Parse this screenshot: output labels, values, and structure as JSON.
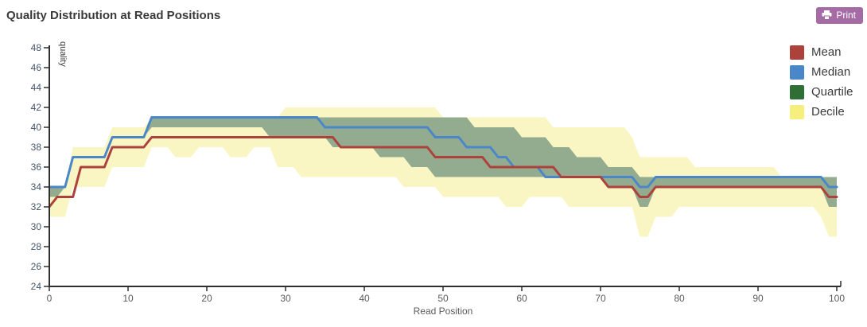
{
  "header": {
    "title": "Quality Distribution at Read Positions",
    "print_label": "Print"
  },
  "axes": {
    "x_label": "Read Position",
    "y_label": "quality",
    "x_ticks": [
      0,
      10,
      20,
      30,
      40,
      50,
      60,
      70,
      80,
      90,
      100
    ],
    "y_ticks": [
      24,
      26,
      28,
      30,
      32,
      34,
      36,
      38,
      40,
      42,
      44,
      46,
      48
    ],
    "x_range": [
      0,
      100
    ],
    "y_range": [
      24,
      48
    ],
    "grid": false
  },
  "legend": {
    "position": "top-right",
    "items": [
      {
        "label": "Mean",
        "color": "#ad423c"
      },
      {
        "label": "Median",
        "color": "#4a87c9"
      },
      {
        "label": "Quartile",
        "color": "#2f6e35"
      },
      {
        "label": "Decile",
        "color": "#f6ef7d"
      }
    ]
  },
  "chart_data": {
    "type": "line",
    "title": "Quality Distribution at Read Positions",
    "xlabel": "Read Position",
    "ylabel": "quality",
    "xlim": [
      0,
      100
    ],
    "ylim": [
      24,
      48
    ],
    "legend_position": "top-right",
    "x": [
      0,
      1,
      2,
      3,
      4,
      5,
      6,
      7,
      8,
      9,
      10,
      11,
      12,
      13,
      14,
      15,
      16,
      17,
      18,
      19,
      20,
      21,
      22,
      23,
      24,
      25,
      26,
      27,
      28,
      29,
      30,
      31,
      32,
      33,
      34,
      35,
      36,
      37,
      38,
      39,
      40,
      41,
      42,
      43,
      44,
      45,
      46,
      47,
      48,
      49,
      50,
      51,
      52,
      53,
      54,
      55,
      56,
      57,
      58,
      59,
      60,
      61,
      62,
      63,
      64,
      65,
      66,
      67,
      68,
      69,
      70,
      71,
      72,
      73,
      74,
      75,
      76,
      77,
      78,
      79,
      80,
      81,
      82,
      83,
      84,
      85,
      86,
      87,
      88,
      89,
      90,
      91,
      92,
      93,
      94,
      95,
      96,
      97,
      98,
      99,
      100
    ],
    "series": [
      {
        "name": "Median",
        "color": "#4a87c9",
        "values": [
          34,
          34,
          34,
          37,
          37,
          37,
          37,
          37,
          39,
          39,
          39,
          39,
          39,
          41,
          41,
          41,
          41,
          41,
          41,
          41,
          41,
          41,
          41,
          41,
          41,
          41,
          41,
          41,
          41,
          41,
          41,
          41,
          41,
          41,
          41,
          40,
          40,
          40,
          40,
          40,
          40,
          40,
          40,
          40,
          40,
          40,
          40,
          40,
          40,
          39,
          39,
          39,
          39,
          38,
          38,
          38,
          38,
          37,
          37,
          36,
          36,
          36,
          36,
          35,
          35,
          35,
          35,
          35,
          35,
          35,
          35,
          35,
          35,
          35,
          35,
          34,
          34,
          35,
          35,
          35,
          35,
          35,
          35,
          35,
          35,
          35,
          35,
          35,
          35,
          35,
          35,
          35,
          35,
          35,
          35,
          35,
          35,
          35,
          35,
          34,
          34
        ]
      },
      {
        "name": "Mean",
        "color": "#ad423c",
        "values": [
          32,
          33,
          33,
          33,
          36,
          36,
          36,
          36,
          38,
          38,
          38,
          38,
          38,
          39,
          39,
          39,
          39,
          39,
          39,
          39,
          39,
          39,
          39,
          39,
          39,
          39,
          39,
          39,
          39,
          39,
          39,
          39,
          39,
          39,
          39,
          39,
          39,
          38,
          38,
          38,
          38,
          38,
          38,
          38,
          38,
          38,
          38,
          38,
          38,
          37,
          37,
          37,
          37,
          37,
          37,
          37,
          36,
          36,
          36,
          36,
          36,
          36,
          36,
          36,
          36,
          35,
          35,
          35,
          35,
          35,
          35,
          34,
          34,
          34,
          34,
          33,
          33,
          34,
          34,
          34,
          34,
          34,
          34,
          34,
          34,
          34,
          34,
          34,
          34,
          34,
          34,
          34,
          34,
          34,
          34,
          34,
          34,
          34,
          34,
          33,
          33
        ]
      }
    ],
    "bands": [
      {
        "name": "Decile",
        "fill": "#faf6c3",
        "legend_color": "#f6ef7d",
        "high": [
          34,
          34,
          34,
          38,
          38,
          38,
          38,
          38,
          40,
          40,
          40,
          40,
          40,
          41,
          41,
          41,
          41,
          41,
          41,
          41,
          41,
          41,
          41,
          41,
          41,
          41,
          41,
          41,
          41,
          41,
          42,
          42,
          42,
          42,
          42,
          42,
          42,
          42,
          42,
          42,
          42,
          42,
          42,
          42,
          42,
          42,
          42,
          42,
          42,
          42,
          41,
          41,
          41,
          41,
          41,
          41,
          41,
          41,
          41,
          41,
          41,
          41,
          41,
          41,
          40,
          40,
          40,
          40,
          40,
          40,
          40,
          40,
          40,
          40,
          39,
          37,
          37,
          37,
          37,
          37,
          37,
          37,
          36,
          36,
          36,
          36,
          36,
          36,
          36,
          36,
          36,
          36,
          36,
          35,
          35,
          35,
          35,
          35,
          35,
          35,
          35
        ],
        "low": [
          31,
          31,
          31,
          34,
          34,
          34,
          34,
          34,
          36,
          36,
          36,
          36,
          36,
          38,
          38,
          38,
          37,
          37,
          37,
          38,
          38,
          38,
          38,
          37,
          37,
          37,
          38,
          38,
          38,
          36,
          36,
          36,
          35,
          35,
          35,
          35,
          35,
          35,
          35,
          35,
          35,
          35,
          35,
          35,
          35,
          34,
          34,
          34,
          34,
          34,
          33,
          33,
          33,
          33,
          33,
          33,
          33,
          33,
          32,
          32,
          32,
          33,
          33,
          33,
          33,
          33,
          32,
          32,
          32,
          32,
          32,
          32,
          32,
          32,
          32,
          29,
          29,
          31,
          31,
          31,
          32,
          32,
          32,
          32,
          32,
          32,
          32,
          32,
          32,
          32,
          32,
          32,
          32,
          32,
          32,
          32,
          32,
          32,
          31,
          29,
          29
        ]
      },
      {
        "name": "Quartile",
        "fill": "#93ac8f",
        "legend_color": "#2f6e35",
        "high": [
          34,
          34,
          34,
          37,
          37,
          37,
          37,
          37,
          39,
          39,
          39,
          39,
          39,
          41,
          41,
          41,
          41,
          41,
          41,
          41,
          41,
          41,
          41,
          41,
          41,
          41,
          41,
          41,
          41,
          41,
          41,
          41,
          41,
          41,
          41,
          41,
          41,
          41,
          41,
          41,
          41,
          41,
          41,
          41,
          41,
          41,
          41,
          41,
          41,
          41,
          41,
          41,
          41,
          41,
          40,
          40,
          40,
          40,
          40,
          40,
          39,
          39,
          39,
          39,
          38,
          38,
          38,
          37,
          37,
          37,
          37,
          36,
          36,
          36,
          36,
          35,
          35,
          35,
          35,
          35,
          35,
          35,
          35,
          35,
          35,
          35,
          35,
          35,
          35,
          35,
          35,
          35,
          35,
          35,
          35,
          35,
          35,
          35,
          35,
          35,
          35
        ],
        "low": [
          33,
          33,
          34,
          37,
          37,
          37,
          37,
          37,
          39,
          39,
          39,
          39,
          39,
          40,
          40,
          40,
          40,
          40,
          40,
          40,
          40,
          40,
          40,
          40,
          40,
          40,
          40,
          40,
          39,
          39,
          39,
          39,
          39,
          39,
          39,
          39,
          38,
          38,
          38,
          38,
          38,
          38,
          37,
          37,
          37,
          37,
          36,
          36,
          36,
          35,
          35,
          35,
          35,
          35,
          35,
          35,
          35,
          35,
          35,
          35,
          35,
          35,
          35,
          35,
          35,
          35,
          35,
          35,
          35,
          35,
          35,
          34,
          34,
          34,
          34,
          32,
          32,
          34,
          34,
          34,
          34,
          34,
          34,
          34,
          34,
          34,
          34,
          34,
          34,
          34,
          34,
          34,
          34,
          34,
          34,
          34,
          34,
          34,
          34,
          32,
          32
        ]
      }
    ]
  }
}
